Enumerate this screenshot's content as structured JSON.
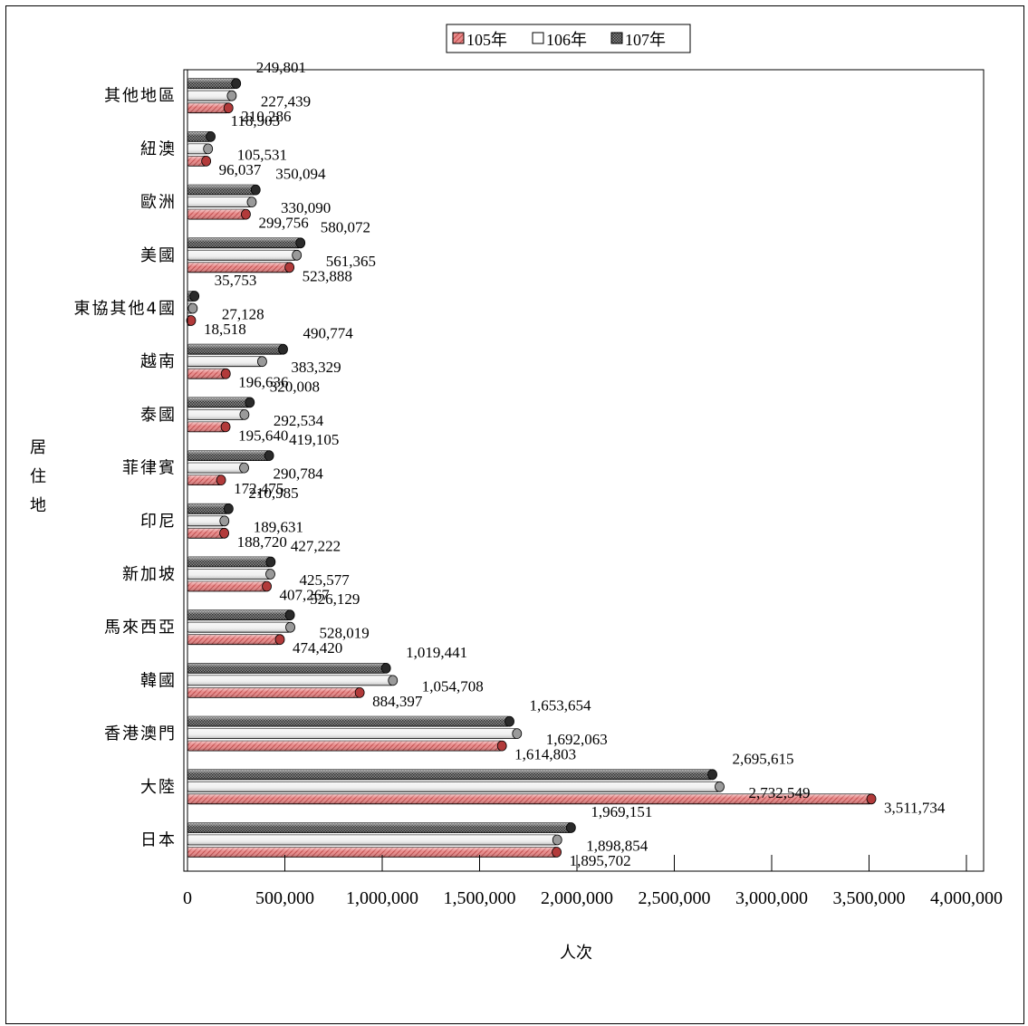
{
  "chart_data": {
    "type": "bar",
    "orientation": "horizontal",
    "xlabel": "人次",
    "ylabel": "居住地",
    "xlim": [
      0,
      4000000
    ],
    "xticks": [
      "0",
      "500,000",
      "1,000,000",
      "1,500,000",
      "2,000,000",
      "2,500,000",
      "3,000,000",
      "3,500,000",
      "4,000,000"
    ],
    "tick_values": [
      0,
      500000,
      1000000,
      1500000,
      2000000,
      2500000,
      3000000,
      3500000,
      4000000
    ],
    "legend_position": "top",
    "grid": false,
    "categories": [
      "日本",
      "大陸",
      "香港澳門",
      "韓國",
      "馬來西亞",
      "新加坡",
      "印尼",
      "菲律賓",
      "泰國",
      "越南",
      "東協其他4國",
      "美國",
      "歐洲",
      "紐澳",
      "其他地區"
    ],
    "series": [
      {
        "name": "105年",
        "color": "#e47a7a",
        "values": [
          1895702,
          3511734,
          1614803,
          884397,
          474420,
          407267,
          188720,
          172475,
          195640,
          196636,
          18518,
          523888,
          299756,
          96037,
          210286
        ],
        "labels": [
          "1,895,702",
          "3,511,734",
          "1,614,803",
          "884,397",
          "474,420",
          "407,267",
          "188,720",
          "172,475",
          "195,640",
          "196,636",
          "18,518",
          "523,888",
          "299,756",
          "96,037",
          "210,286"
        ]
      },
      {
        "name": "106年",
        "color": "#f0f0f0",
        "values": [
          1898854,
          2732549,
          1692063,
          1054708,
          528019,
          425577,
          189631,
          290784,
          292534,
          383329,
          27128,
          561365,
          330090,
          105531,
          227439
        ],
        "labels": [
          "1,898,854",
          "2,732,549",
          "1,692,063",
          "1,054,708",
          "528,019",
          "425,577",
          "189,631",
          "290,784",
          "292,534",
          "383,329",
          "27,128",
          "561,365",
          "330,090",
          "105,531",
          "227,439"
        ]
      },
      {
        "name": "107年",
        "color": "#555555",
        "values": [
          1969151,
          2695615,
          1653654,
          1019441,
          526129,
          427222,
          210985,
          419105,
          320008,
          490774,
          35753,
          580072,
          350094,
          118903,
          249801
        ],
        "labels": [
          "1,969,151",
          "2,695,615",
          "1,653,654",
          "1,019,441",
          "526,129",
          "427,222",
          "210,985",
          "419,105",
          "320,008",
          "490,774",
          "35,753",
          "580,072",
          "350,094",
          "118,903",
          "249,801"
        ]
      }
    ]
  }
}
